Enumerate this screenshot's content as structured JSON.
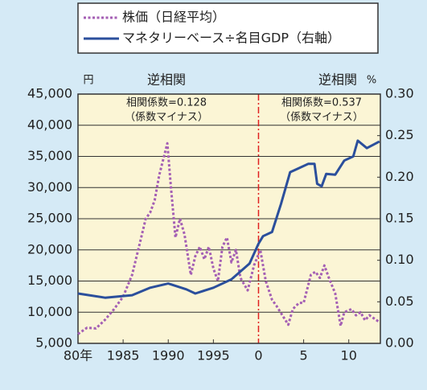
{
  "chart_data": {
    "type": "line",
    "annotations": [
      "円",
      "%",
      "逆相関",
      "逆相関",
      "相関係数=0.128",
      "（係数マイナス）",
      "相関係数=0.537",
      "（係数マイナス）"
    ],
    "xlim": [
      1980,
      2013.5
    ],
    "xticks": [
      {
        "value": 1980,
        "label": "80年"
      },
      1985,
      1990,
      1995,
      {
        "value": 2000,
        "label": "0"
      },
      {
        "value": 2005,
        "label": "5"
      },
      {
        "value": 2010,
        "label": "10"
      }
    ],
    "ylim": [
      5000,
      45000
    ],
    "yticks": [
      {
        "value": 5000,
        "label": "5,000"
      },
      {
        "value": 10000,
        "label": "10,000"
      },
      {
        "value": 15000,
        "label": "15,000"
      },
      {
        "value": 20000,
        "label": "20,000"
      },
      {
        "value": 25000,
        "label": "25,000"
      },
      {
        "value": 30000,
        "label": "30,000"
      },
      {
        "value": 35000,
        "label": "35,000"
      },
      {
        "value": 40000,
        "label": "40,000"
      },
      {
        "value": 45000,
        "label": "45,000"
      }
    ],
    "y2lim": [
      0,
      0.3
    ],
    "y2ticks": [
      {
        "value": 0,
        "label": "0.00"
      },
      {
        "value": 0.05,
        "label": "0.05"
      },
      {
        "value": 0.1,
        "label": "0.10"
      },
      {
        "value": 0.15,
        "label": "0.15"
      },
      {
        "value": 0.2,
        "label": "0.20"
      },
      {
        "value": 0.25,
        "label": "0.25"
      },
      {
        "value": 0.3,
        "label": "0.30"
      }
    ],
    "grid": true,
    "series": [
      {
        "name": "株価（日経平均）",
        "color": "#a45fb4",
        "style": "dotted",
        "x": [
          1980,
          1981,
          1982,
          1983,
          1984,
          1985,
          1986,
          1987,
          1987.5,
          1988,
          1988.5,
          1989,
          1989.9,
          1990.3,
          1990.8,
          1991.3,
          1991.8,
          1992.5,
          1993,
          1993.5,
          1994,
          1994.5,
          1995,
          1995.5,
          1996,
          1996.5,
          1997,
          1997.5,
          1998,
          1998.8,
          1999.5,
          2000.2,
          2000.8,
          2001.5,
          2002,
          2003.3,
          2003.8,
          2004.5,
          2005,
          2005.8,
          2006.3,
          2006.8,
          2007.3,
          2007.8,
          2008.5,
          2009.1,
          2009.5,
          2010.3,
          2010.8,
          2011.3,
          2011.8,
          2012.3,
          2012.8,
          2013.3
        ],
        "values": [
          6500,
          7500,
          7400,
          8800,
          10500,
          12500,
          16000,
          22000,
          25000,
          26000,
          28000,
          32000,
          37100,
          30000,
          22000,
          25000,
          22500,
          16000,
          19000,
          20500,
          18500,
          20500,
          17000,
          15000,
          20500,
          22000,
          18000,
          20000,
          15500,
          13500,
          17500,
          20000,
          15000,
          12000,
          11000,
          8000,
          10500,
          11500,
          11500,
          16000,
          16500,
          15500,
          17500,
          15500,
          13000,
          7800,
          10000,
          10500,
          9500,
          10000,
          8700,
          9500,
          9000,
          8500
        ]
      },
      {
        "name": "マネタリーベース÷名目GDP（右軸）",
        "color": "#2b4f9c",
        "style": "solid",
        "axis": "y2",
        "x": [
          1980,
          1983,
          1986,
          1988,
          1990,
          1992,
          1993,
          1995,
          1997,
          1999,
          2000,
          2000.5,
          2001.5,
          2002.5,
          2003.5,
          2004.5,
          2005.5,
          2006.2,
          2006.5,
          2007,
          2007.5,
          2008.5,
          2009.5,
          2010.5,
          2011,
          2012,
          2013.4
        ],
        "values": [
          0.06,
          0.055,
          0.058,
          0.067,
          0.072,
          0.065,
          0.06,
          0.067,
          0.077,
          0.096,
          0.12,
          0.129,
          0.134,
          0.168,
          0.206,
          0.211,
          0.216,
          0.216,
          0.192,
          0.189,
          0.204,
          0.203,
          0.22,
          0.225,
          0.244,
          0.235,
          0.243
        ]
      }
    ]
  }
}
